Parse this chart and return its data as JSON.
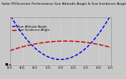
{
  "title": "Solar PV/Inverter Performance Sun Altitude Angle & Sun Incidence Angle on PV Panels",
  "title_fontsize": 3.2,
  "bg_color": "#c8c8c8",
  "plot_bg_color": "#c8c8c8",
  "grid_color": "#aaaaaa",
  "line1_color": "#0000ee",
  "line2_color": "#cc0000",
  "line1_label": "Sun Altitude Angle",
  "line2_label": "Sun Incidence Angle",
  "n_points": 100,
  "ylim": [
    0,
    90
  ],
  "yticks": [
    0,
    10,
    20,
    30,
    40,
    50,
    60,
    70,
    80,
    90
  ],
  "xtick_labels": [
    "04:00",
    "06:00",
    "08:00",
    "10:00",
    "12:00",
    "14:00",
    "16:00",
    "18:00",
    "20:00"
  ],
  "legend_fontsize": 2.8,
  "linewidth": 1.0
}
